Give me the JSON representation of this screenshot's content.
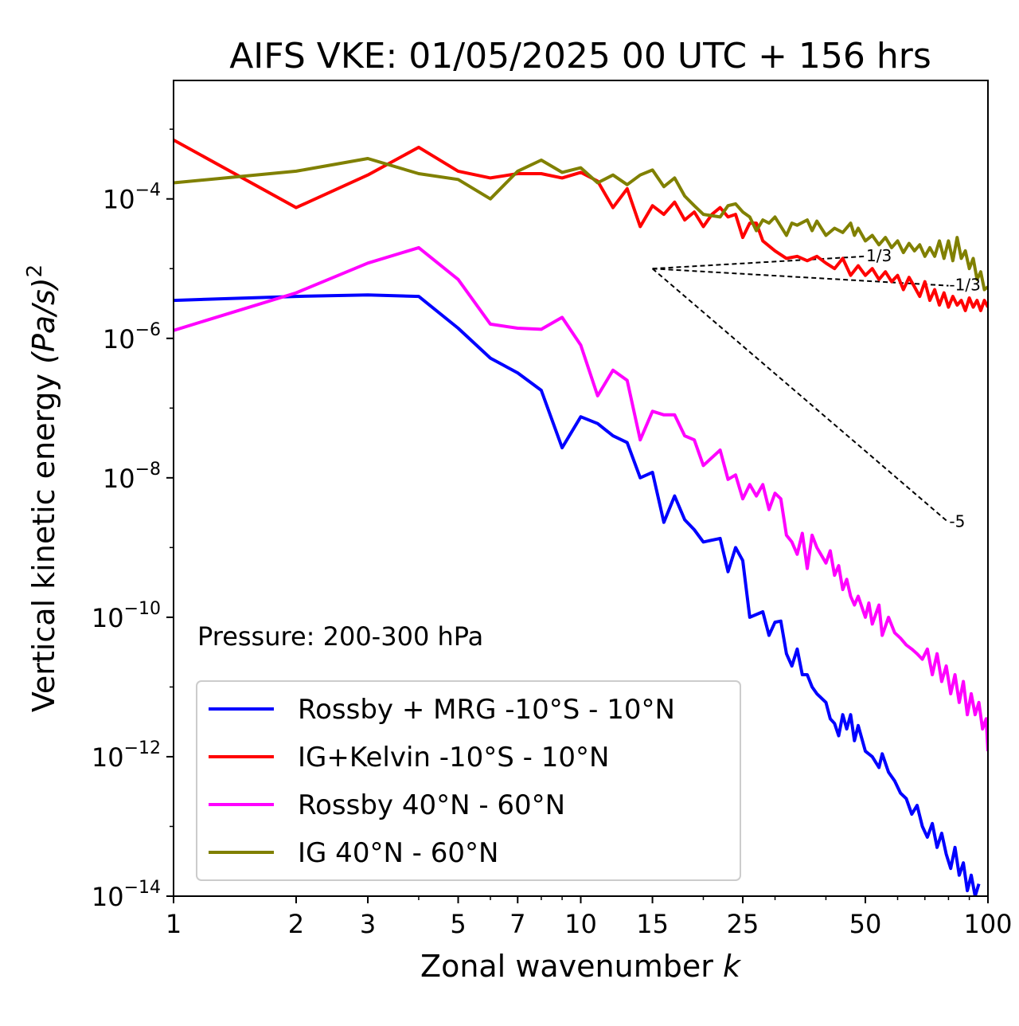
{
  "chart_data": {
    "type": "line",
    "title": "AIFS VKE: 01/05/2025 00 UTC + 156 hrs",
    "xlabel": "Zonal wavenumber",
    "xlabel_var": "k",
    "ylabel": "Vertical kinetic energy",
    "ylabel_unit": "(Pa/s)",
    "ylabel_unit_exp": "2",
    "x_scale": "log",
    "y_scale": "log",
    "xlim": [
      1,
      100
    ],
    "ylim": [
      1e-14,
      0.005
    ],
    "x_ticks": [
      1,
      2,
      3,
      5,
      7,
      10,
      15,
      25,
      50,
      100
    ],
    "x_tick_labels": [
      "1",
      "2",
      "3",
      "5",
      "7",
      "10",
      "15",
      "25",
      "50",
      "100"
    ],
    "y_ticks": [
      {
        "value": 0.0001,
        "base": "10",
        "exp": "−4"
      },
      {
        "value": 1e-06,
        "base": "10",
        "exp": "−6"
      },
      {
        "value": 1e-08,
        "base": "10",
        "exp": "−8"
      },
      {
        "value": 1e-10,
        "base": "10",
        "exp": "−10"
      },
      {
        "value": 1e-12,
        "base": "10",
        "exp": "−12"
      },
      {
        "value": 1e-14,
        "base": "10",
        "exp": "−14"
      }
    ],
    "annotation": "Pressure: 200-300 hPa",
    "legend_position": "lower-left",
    "grid": false,
    "series": [
      {
        "name": "Rossby + MRG -10°S - 10°N",
        "color": "#0000ff",
        "points": [
          [
            1,
            3.5e-06
          ],
          [
            2,
            4e-06
          ],
          [
            3,
            4.2e-06
          ],
          [
            4,
            4e-06
          ],
          [
            5,
            1.4e-06
          ],
          [
            6,
            5.2e-07
          ],
          [
            7,
            3.2e-07
          ],
          [
            8,
            1.8e-07
          ],
          [
            9,
            2.7e-08
          ],
          [
            10,
            7.5e-08
          ],
          [
            11,
            6e-08
          ],
          [
            12,
            4e-08
          ],
          [
            13,
            3.2e-08
          ],
          [
            14,
            1e-08
          ],
          [
            15,
            1.2e-08
          ],
          [
            16,
            2.3e-09
          ],
          [
            17,
            5.5e-09
          ],
          [
            18,
            2.5e-09
          ],
          [
            19,
            1.8e-09
          ],
          [
            20,
            1.2e-09
          ],
          [
            22,
            1.35e-09
          ],
          [
            23,
            4.5e-10
          ],
          [
            24,
            1e-09
          ],
          [
            25,
            6.5e-10
          ],
          [
            26,
            1e-10
          ],
          [
            28,
            1.2e-10
          ],
          [
            29,
            5.5e-11
          ],
          [
            30,
            8.5e-11
          ],
          [
            31,
            8.8e-11
          ],
          [
            32,
            3e-11
          ],
          [
            33,
            2e-11
          ],
          [
            34,
            3.5e-11
          ],
          [
            35,
            1.5e-11
          ],
          [
            36,
            1.5e-11
          ],
          [
            37,
            1e-11
          ],
          [
            38,
            8e-12
          ],
          [
            40,
            6e-12
          ],
          [
            41,
            3.5e-12
          ],
          [
            42,
            3e-12
          ],
          [
            43,
            2e-12
          ],
          [
            44,
            4e-12
          ],
          [
            45,
            2.5e-12
          ],
          [
            46,
            4e-12
          ],
          [
            47,
            1.7e-12
          ],
          [
            48,
            2.8e-12
          ],
          [
            50,
            1.2e-12
          ],
          [
            52,
            1e-12
          ],
          [
            54,
            7e-13
          ],
          [
            55,
            1.1e-12
          ],
          [
            57,
            6e-13
          ],
          [
            59,
            4.5e-13
          ],
          [
            61,
            3e-13
          ],
          [
            63,
            2.5e-13
          ],
          [
            65,
            1.5e-13
          ],
          [
            67,
            2e-13
          ],
          [
            69,
            1e-13
          ],
          [
            71,
            7e-14
          ],
          [
            73,
            1.1e-13
          ],
          [
            75,
            5e-14
          ],
          [
            77,
            8e-14
          ],
          [
            79,
            4e-14
          ],
          [
            81,
            2.5e-14
          ],
          [
            83,
            5e-14
          ],
          [
            85,
            2e-14
          ],
          [
            87,
            3e-14
          ],
          [
            89,
            1.2e-14
          ],
          [
            91,
            2e-14
          ],
          [
            93,
            1e-14
          ],
          [
            95,
            1.5e-14
          ]
        ]
      },
      {
        "name": "IG+Kelvin -10°S - 10°N",
        "color": "#ff0000",
        "points": [
          [
            1,
            0.0007
          ],
          [
            2,
            7.5e-05
          ],
          [
            3,
            0.00022
          ],
          [
            4,
            0.00055
          ],
          [
            5,
            0.00025
          ],
          [
            6,
            0.0002
          ],
          [
            7,
            0.00023
          ],
          [
            8,
            0.00023
          ],
          [
            9,
            0.0002
          ],
          [
            10,
            0.00024
          ],
          [
            11,
            0.00018
          ],
          [
            12,
            7.5e-05
          ],
          [
            13,
            0.00014
          ],
          [
            14,
            4e-05
          ],
          [
            15,
            8e-05
          ],
          [
            16,
            6e-05
          ],
          [
            17,
            9e-05
          ],
          [
            18,
            5e-05
          ],
          [
            19,
            6.5e-05
          ],
          [
            20,
            4e-05
          ],
          [
            21,
            6e-05
          ],
          [
            22,
            7.5e-05
          ],
          [
            23,
            5.5e-05
          ],
          [
            24,
            6e-05
          ],
          [
            25,
            2.8e-05
          ],
          [
            26,
            4.5e-05
          ],
          [
            27,
            4.5e-05
          ],
          [
            28,
            2.5e-05
          ],
          [
            30,
            1.8e-05
          ],
          [
            32,
            1.4e-05
          ],
          [
            34,
            1.5e-05
          ],
          [
            36,
            1.3e-05
          ],
          [
            38,
            1.5e-05
          ],
          [
            40,
            1.2e-05
          ],
          [
            42,
            1e-05
          ],
          [
            44,
            1.4e-05
          ],
          [
            46,
            8e-06
          ],
          [
            48,
            1.1e-05
          ],
          [
            50,
            8e-06
          ],
          [
            52,
            1e-05
          ],
          [
            54,
            7e-06
          ],
          [
            56,
            9e-06
          ],
          [
            58,
            6.5e-06
          ],
          [
            60,
            8e-06
          ],
          [
            62,
            5e-06
          ],
          [
            64,
            7.5e-06
          ],
          [
            66,
            5.5e-06
          ],
          [
            68,
            4e-06
          ],
          [
            70,
            6.5e-06
          ],
          [
            72,
            3.5e-06
          ],
          [
            74,
            5e-06
          ],
          [
            76,
            3e-06
          ],
          [
            78,
            4.5e-06
          ],
          [
            80,
            2.8e-06
          ],
          [
            82,
            4e-06
          ],
          [
            84,
            3e-06
          ],
          [
            86,
            3.5e-06
          ],
          [
            88,
            2.5e-06
          ],
          [
            90,
            3.8e-06
          ],
          [
            92,
            2.8e-06
          ],
          [
            94,
            3.5e-06
          ],
          [
            96,
            2.5e-06
          ],
          [
            98,
            3.5e-06
          ],
          [
            100,
            2.8e-06
          ]
        ]
      },
      {
        "name": "Rossby 40°N - 60°N",
        "color": "#ff00ff",
        "points": [
          [
            1,
            1.3e-06
          ],
          [
            2,
            4.5e-06
          ],
          [
            3,
            1.2e-05
          ],
          [
            4,
            2e-05
          ],
          [
            5,
            7e-06
          ],
          [
            6,
            1.6e-06
          ],
          [
            7,
            1.4e-06
          ],
          [
            8,
            1.35e-06
          ],
          [
            9,
            2e-06
          ],
          [
            10,
            8e-07
          ],
          [
            11,
            1.5e-07
          ],
          [
            12,
            3.5e-07
          ],
          [
            13,
            2.5e-07
          ],
          [
            14,
            3.5e-08
          ],
          [
            15,
            9e-08
          ],
          [
            16,
            8e-08
          ],
          [
            17,
            8e-08
          ],
          [
            18,
            4e-08
          ],
          [
            19,
            3.5e-08
          ],
          [
            20,
            1.5e-08
          ],
          [
            22,
            2.5e-08
          ],
          [
            23,
            9.5e-09
          ],
          [
            24,
            1.1e-08
          ],
          [
            25,
            5e-09
          ],
          [
            26,
            8e-09
          ],
          [
            27,
            5.5e-09
          ],
          [
            28,
            8e-09
          ],
          [
            29,
            3.5e-09
          ],
          [
            30,
            6e-09
          ],
          [
            31,
            5e-09
          ],
          [
            32,
            1.5e-09
          ],
          [
            33,
            1.2e-09
          ],
          [
            34,
            8e-10
          ],
          [
            35,
            1.6e-09
          ],
          [
            36,
            5e-10
          ],
          [
            37,
            1.5e-09
          ],
          [
            38,
            1e-09
          ],
          [
            40,
            6e-10
          ],
          [
            41,
            9e-10
          ],
          [
            42,
            4e-10
          ],
          [
            43,
            5.5e-10
          ],
          [
            44,
            2.5e-10
          ],
          [
            45,
            3.5e-10
          ],
          [
            46,
            2e-10
          ],
          [
            47,
            1.5e-10
          ],
          [
            48,
            2e-10
          ],
          [
            50,
            1e-10
          ],
          [
            51,
            1.6e-10
          ],
          [
            52,
            8e-11
          ],
          [
            54,
            1.5e-10
          ],
          [
            55,
            5.5e-11
          ],
          [
            57,
            1e-10
          ],
          [
            59,
            6e-11
          ],
          [
            61,
            5e-11
          ],
          [
            63,
            4e-11
          ],
          [
            65,
            3.5e-11
          ],
          [
            67,
            3e-11
          ],
          [
            69,
            2.5e-11
          ],
          [
            71,
            3.5e-11
          ],
          [
            73,
            1.5e-11
          ],
          [
            75,
            3e-11
          ],
          [
            77,
            1.2e-11
          ],
          [
            79,
            2e-11
          ],
          [
            81,
            8e-12
          ],
          [
            83,
            1.5e-11
          ],
          [
            85,
            6e-12
          ],
          [
            87,
            1.2e-11
          ],
          [
            89,
            4e-12
          ],
          [
            91,
            8e-12
          ],
          [
            93,
            4e-12
          ],
          [
            95,
            6e-12
          ],
          [
            97,
            2.5e-12
          ],
          [
            99,
            3.5e-12
          ],
          [
            100,
            1.2e-12
          ]
        ]
      },
      {
        "name": "IG 40°N - 60°N",
        "color": "#808000",
        "points": [
          [
            1,
            0.00017
          ],
          [
            2,
            0.00025
          ],
          [
            3,
            0.00038
          ],
          [
            4,
            0.00023
          ],
          [
            5,
            0.00019
          ],
          [
            6,
            0.0001
          ],
          [
            7,
            0.00025
          ],
          [
            8,
            0.00036
          ],
          [
            9,
            0.00024
          ],
          [
            10,
            0.00028
          ],
          [
            11,
            0.00017
          ],
          [
            12,
            0.00022
          ],
          [
            13,
            0.00016
          ],
          [
            14,
            0.00022
          ],
          [
            15,
            0.00026
          ],
          [
            16,
            0.00015
          ],
          [
            17,
            0.0002
          ],
          [
            18,
            0.00011
          ],
          [
            19,
            8e-05
          ],
          [
            20,
            6e-05
          ],
          [
            22,
            5.5e-05
          ],
          [
            23,
            8e-05
          ],
          [
            24,
            8.5e-05
          ],
          [
            25,
            6.5e-05
          ],
          [
            26,
            5.5e-05
          ],
          [
            27,
            3.5e-05
          ],
          [
            28,
            5e-05
          ],
          [
            29,
            4.5e-05
          ],
          [
            30,
            5.5e-05
          ],
          [
            32,
            3e-05
          ],
          [
            33,
            4.5e-05
          ],
          [
            34,
            4.2e-05
          ],
          [
            36,
            5e-05
          ],
          [
            37,
            3.5e-05
          ],
          [
            38,
            4.8e-05
          ],
          [
            40,
            3e-05
          ],
          [
            42,
            3.8e-05
          ],
          [
            44,
            3.3e-05
          ],
          [
            46,
            4.5e-05
          ],
          [
            47,
            3e-05
          ],
          [
            48,
            3.8e-05
          ],
          [
            50,
            2.5e-05
          ],
          [
            52,
            3e-05
          ],
          [
            54,
            2.2e-05
          ],
          [
            56,
            2.8e-05
          ],
          [
            58,
            2e-05
          ],
          [
            60,
            2.5e-05
          ],
          [
            62,
            1.7e-05
          ],
          [
            64,
            2.3e-05
          ],
          [
            66,
            1.8e-05
          ],
          [
            68,
            2.2e-05
          ],
          [
            70,
            1.5e-05
          ],
          [
            72,
            2e-05
          ],
          [
            74,
            1.5e-05
          ],
          [
            76,
            2.5e-05
          ],
          [
            78,
            1.4e-05
          ],
          [
            80,
            2.5e-05
          ],
          [
            82,
            1.3e-05
          ],
          [
            84,
            2.8e-05
          ],
          [
            86,
            1.4e-05
          ],
          [
            88,
            1.8e-05
          ],
          [
            90,
            1e-05
          ],
          [
            92,
            1.4e-05
          ],
          [
            94,
            7e-06
          ],
          [
            96,
            9e-06
          ],
          [
            98,
            5e-06
          ],
          [
            100,
            5.5e-06
          ]
        ]
      }
    ],
    "reference_slopes": [
      {
        "label": "1/3",
        "points": [
          [
            15,
            1e-05
          ],
          [
            50,
            1.5e-05
          ]
        ]
      },
      {
        "label": "-1/3",
        "points": [
          [
            15,
            1e-05
          ],
          [
            80,
            5.7e-06
          ]
        ]
      },
      {
        "label": "-5",
        "points": [
          [
            15,
            1e-05
          ],
          [
            80,
            2.3e-09
          ]
        ]
      }
    ]
  }
}
